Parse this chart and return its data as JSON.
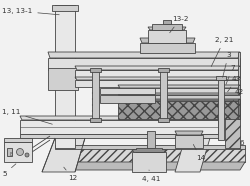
{
  "bg_color": "#f0f0f0",
  "line_color": "#444444",
  "dark_color": "#333333",
  "labels": {
    "13_13_1": "13, 13-1",
    "13_2": "13-2",
    "2_21": "2, 21",
    "3": "3",
    "7": "7",
    "43": "43",
    "42": "42",
    "6": "6",
    "14": "14",
    "4_41": "4, 41",
    "12": "12",
    "1_11": "1, 11",
    "5": "5"
  },
  "figsize": [
    2.5,
    1.86
  ],
  "dpi": 100
}
